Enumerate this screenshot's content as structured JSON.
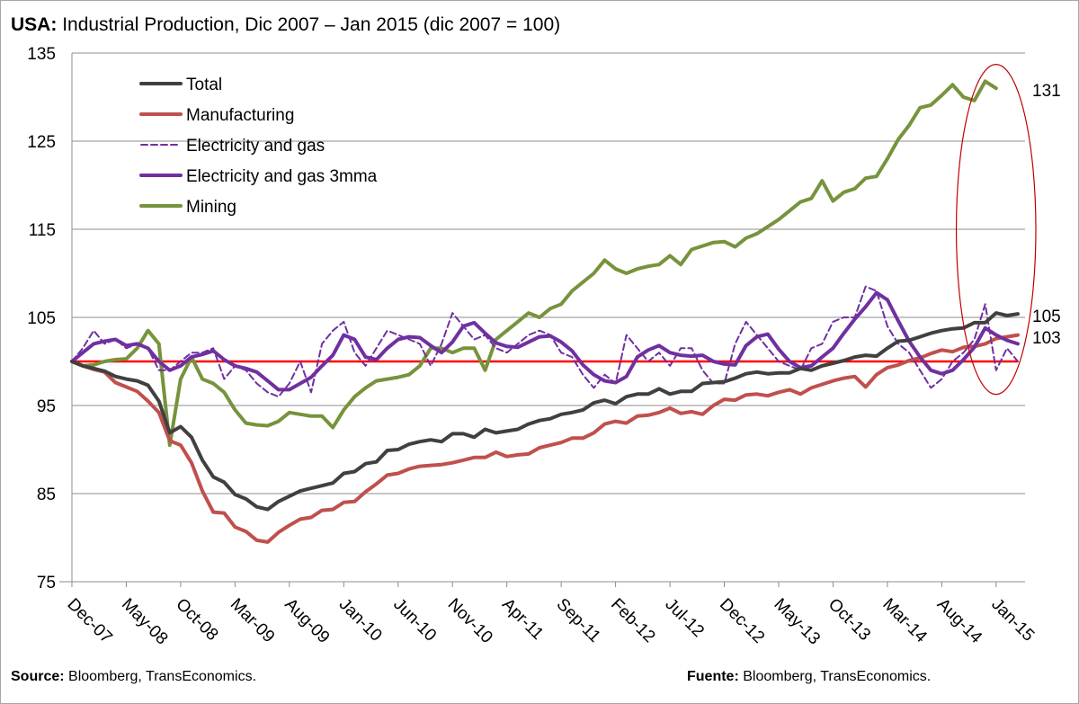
{
  "title": {
    "bold": "USA:",
    "text": "Industrial Production, Dic 2007 – Jan 2015 (dic 2007 = 100)"
  },
  "footer": {
    "left_bold": "Source:",
    "left_text": "Bloomberg, TransEconomics.",
    "right_bold": "Fuente:",
    "right_text": "Bloomberg, TransEconomics."
  },
  "chart_data": {
    "type": "line",
    "title": "USA: Industrial Production, Dic 2007 – Jan 2015 (dic 2007 = 100)",
    "xlabel": "",
    "ylabel": "",
    "ylim": [
      75,
      135
    ],
    "yticks": [
      75,
      85,
      95,
      105,
      115,
      125,
      135
    ],
    "x_start": "Dec-07",
    "x_tick_labels": [
      "Dec-07",
      "May-08",
      "Oct-08",
      "Mar-09",
      "Aug-09",
      "Jan-10",
      "Jun-10",
      "Nov-10",
      "Apr-11",
      "Sep-11",
      "Feb-12",
      "Jul-12",
      "Dec-12",
      "May-13",
      "Oct-13",
      "Mar-14",
      "Aug-14",
      "Jan-15"
    ],
    "grid": "horizontal",
    "legend_position": "top-left",
    "reference_line": {
      "value": 100,
      "color": "#ff0000"
    },
    "highlight": {
      "type": "ellipse",
      "color": "#c00000",
      "from": "Sep-14",
      "to": "Jan-15",
      "y_range": [
        98,
        133
      ]
    },
    "end_labels": [
      {
        "series": "Mining",
        "text": "131",
        "value": 131
      },
      {
        "series": "Total",
        "text": "105",
        "value": 105.4
      },
      {
        "series": "Manufacturing",
        "text": "103",
        "value": 103
      }
    ],
    "series": [
      {
        "name": "Total",
        "color": "#404040",
        "dash": false,
        "width": 4,
        "values": [
          100,
          99.5,
          99.2,
          98.9,
          98.3,
          98,
          97.8,
          97.3,
          95.5,
          91.9,
          92.6,
          91.4,
          88.8,
          86.9,
          86.3,
          84.9,
          84.4,
          83.5,
          83.2,
          84.1,
          84.7,
          85.3,
          85.6,
          85.9,
          86.2,
          87.3,
          87.5,
          88.4,
          88.6,
          89.9,
          90,
          90.6,
          90.9,
          91.1,
          90.9,
          91.8,
          91.8,
          91.4,
          92.3,
          91.9,
          92.1,
          92.3,
          92.9,
          93.3,
          93.5,
          94,
          94.2,
          94.5,
          95.3,
          95.6,
          95.2,
          96,
          96.3,
          96.3,
          96.9,
          96.3,
          96.6,
          96.6,
          97.5,
          97.6,
          97.7,
          98.1,
          98.6,
          98.8,
          98.6,
          98.7,
          98.7,
          99.2,
          99,
          99.5,
          99.8,
          100.1,
          100.5,
          100.7,
          100.6,
          101.5,
          102.3,
          102.4,
          102.8,
          103.2,
          103.5,
          103.7,
          103.8,
          104.4,
          104.4,
          105.5,
          105.2,
          105.4
        ]
      },
      {
        "name": "Manufacturing",
        "color": "#c0504d",
        "dash": false,
        "width": 4,
        "values": [
          100,
          99.5,
          99.1,
          98.8,
          97.6,
          97.1,
          96.6,
          95.5,
          94.2,
          91,
          90.5,
          88.5,
          85.3,
          82.9,
          82.8,
          81.2,
          80.7,
          79.7,
          79.5,
          80.6,
          81.4,
          82.1,
          82.3,
          83.1,
          83.2,
          84,
          84.1,
          85.2,
          86.1,
          87.1,
          87.3,
          87.8,
          88.1,
          88.2,
          88.3,
          88.5,
          88.8,
          89.1,
          89.1,
          89.7,
          89.2,
          89.4,
          89.5,
          90.2,
          90.5,
          90.8,
          91.3,
          91.3,
          91.9,
          92.9,
          93.2,
          93,
          93.8,
          93.9,
          94.2,
          94.7,
          94.1,
          94.3,
          94,
          95,
          95.7,
          95.6,
          96.2,
          96.3,
          96.1,
          96.5,
          96.8,
          96.3,
          97,
          97.4,
          97.8,
          98.1,
          98.3,
          97.1,
          98.5,
          99.3,
          99.6,
          100.1,
          100.4,
          100.9,
          101.3,
          101.1,
          101.6,
          101.7,
          102,
          102.6,
          102.8,
          103
        ]
      },
      {
        "name": "Electricity and gas",
        "color": "#7030a0",
        "dash": true,
        "width": 2,
        "values": [
          100,
          101.5,
          103.5,
          102,
          102.5,
          101.5,
          102,
          101.5,
          99,
          99,
          100,
          101,
          101,
          101.5,
          98,
          99.5,
          99,
          97.5,
          96.5,
          96,
          97.5,
          100,
          96.5,
          102,
          103.5,
          104.5,
          101,
          99.5,
          101.5,
          103.5,
          103,
          102.5,
          102,
          99.5,
          102,
          105.5,
          104,
          102.5,
          103,
          101.5,
          101,
          102,
          103,
          103.5,
          103,
          101,
          100.5,
          98.5,
          97,
          98.5,
          97.5,
          103,
          101.5,
          100,
          101,
          99.5,
          101.5,
          101.5,
          99,
          97.5,
          97.5,
          102,
          104.5,
          103,
          101.5,
          100,
          99.5,
          99,
          101.5,
          102,
          104.5,
          105,
          105,
          108.5,
          108,
          104,
          102,
          101,
          99,
          97,
          98,
          100,
          101,
          102.5,
          106.5,
          99,
          101.5,
          100
        ]
      },
      {
        "name": "Electricity and gas 3mma",
        "color": "#7030a0",
        "dash": false,
        "width": 4,
        "values": [
          100,
          101,
          102,
          102.3,
          102.5,
          101.8,
          102,
          101.5,
          100,
          99,
          99.5,
          100.5,
          100.8,
          101.2,
          100.2,
          99.5,
          99.2,
          98.8,
          97.8,
          96.8,
          96.8,
          97.5,
          98.2,
          99.5,
          100.7,
          103,
          102.5,
          100.5,
          100.2,
          101.5,
          102.5,
          102.8,
          102.7,
          101.8,
          101,
          102.2,
          104,
          104.4,
          103.2,
          102.1,
          101.7,
          101.6,
          102.2,
          102.8,
          102.9,
          102.2,
          101.2,
          99.6,
          98.5,
          97.8,
          97.6,
          98.3,
          100.5,
          101.3,
          101.8,
          101,
          100.7,
          100.6,
          100.7,
          100,
          99.7,
          99.6,
          101.8,
          102.8,
          103.1,
          101.4,
          100,
          99.3,
          99.5,
          100.5,
          101.5,
          103.2,
          104.8,
          106.2,
          107.8,
          107,
          104.6,
          102.3,
          100.5,
          99,
          98.6,
          99,
          100.2,
          101.6,
          103.8,
          103,
          102.4,
          102
        ]
      },
      {
        "name": "Mining",
        "color": "#77933c",
        "dash": false,
        "width": 4,
        "values": [
          100,
          99.5,
          99.6,
          100,
          100.2,
          100.3,
          101.5,
          103.5,
          102,
          90.5,
          98,
          100.5,
          98,
          97.5,
          96.5,
          94.5,
          93,
          92.8,
          92.7,
          93.2,
          94.2,
          94,
          93.8,
          93.8,
          92.5,
          94.5,
          96,
          97,
          97.8,
          98,
          98.2,
          98.5,
          99.5,
          101.5,
          101.5,
          101,
          101.5,
          101.5,
          99,
          102.5,
          103.5,
          104.5,
          105.5,
          105,
          106,
          106.5,
          108,
          109,
          110,
          111.5,
          110.5,
          110,
          110.5,
          110.8,
          111,
          112,
          111,
          112.7,
          113.1,
          113.5,
          113.6,
          113,
          114,
          114.5,
          115.3,
          116.1,
          117.1,
          118.1,
          118.5,
          120.5,
          118.2,
          119.2,
          119.6,
          120.8,
          121,
          123,
          125.2,
          126.8,
          128.8,
          129.1,
          130.2,
          131.4,
          130,
          129.6,
          131.8,
          131
        ]
      }
    ]
  }
}
